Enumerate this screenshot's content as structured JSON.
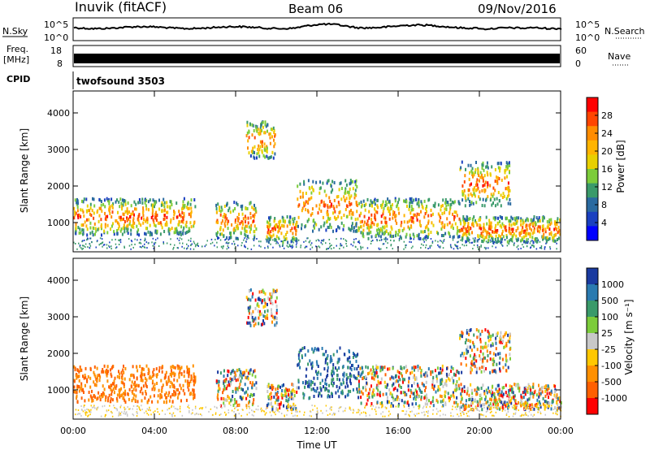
{
  "header": {
    "station": "Inuvik (fitACF)",
    "beam": "Beam 06",
    "date": "09/Nov/2016"
  },
  "aux": {
    "nsky_label": "N.Sky",
    "nsearch_label": "N.Search",
    "freq_label_1": "Freq.",
    "freq_label_2": "[MHz]",
    "nave_label": "Nave",
    "cpid_label": "CPID",
    "cpid_value": "twofsound 3503",
    "nsky_ticks": [
      "10^5",
      "10^0"
    ],
    "nsearch_ticks": [
      "10^5",
      "10^0"
    ],
    "freq_ticks": [
      "18",
      "8"
    ],
    "nave_ticks": [
      "60",
      "0"
    ]
  },
  "chart_data": [
    {
      "type": "heatmap",
      "name": "power",
      "ylabel": "Slant Range [km]",
      "yticks": [
        1000,
        2000,
        3000,
        4000
      ],
      "ylim": [
        200,
        4600
      ],
      "colorbar": {
        "label": "Power [dB]",
        "ticks": [
          "28",
          "24",
          "20",
          "16",
          "12",
          "8",
          "4"
        ],
        "colors": [
          "#ff0000",
          "#ff4500",
          "#ff8c00",
          "#ffb400",
          "#e8d000",
          "#7ccc3a",
          "#3a9a6a",
          "#2a6aa0",
          "#1a40c0",
          "#0000ff"
        ]
      }
    },
    {
      "type": "heatmap",
      "name": "velocity",
      "ylabel": "Slant Range [km]",
      "yticks": [
        1000,
        2000,
        3000,
        4000
      ],
      "ylim": [
        200,
        4600
      ],
      "colorbar": {
        "label": "Velocity [m s⁻¹]",
        "ticks": [
          "1000",
          "500",
          "100",
          "25",
          "-25",
          "-100",
          "-500",
          "-1000"
        ],
        "colors": [
          "#1a3aa0",
          "#2a7ab0",
          "#3a9a6a",
          "#7ccc3a",
          "#c8c8c8",
          "#ffc800",
          "#ff9000",
          "#ff6000",
          "#ff0000"
        ]
      }
    }
  ],
  "xaxis": {
    "label": "Time UT",
    "ticks": [
      "00:00",
      "04:00",
      "08:00",
      "12:00",
      "16:00",
      "20:00",
      "00:00"
    ]
  }
}
